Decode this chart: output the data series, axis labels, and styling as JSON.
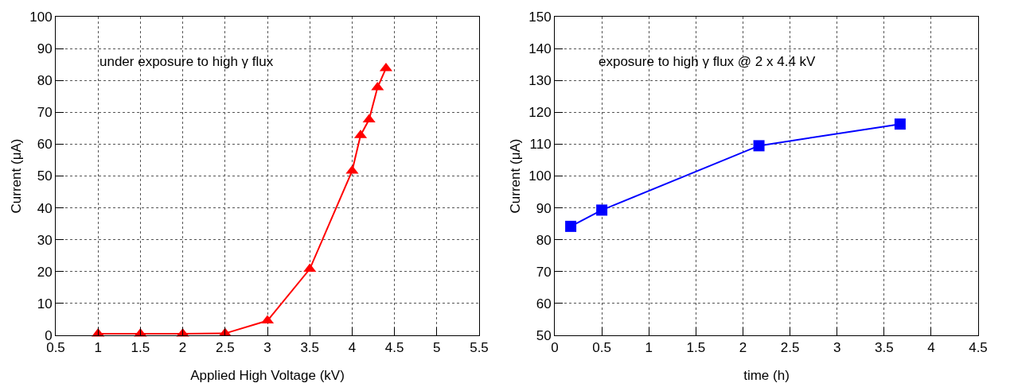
{
  "chart_data": [
    {
      "type": "line",
      "xlabel": "Applied High Voltage (kV)",
      "ylabel": "Current (μA)",
      "annotations": [
        "under exposure to high γ flux"
      ],
      "x": [
        1,
        1.5,
        2,
        2.5,
        3,
        3.5,
        4,
        4.1,
        4.2,
        4.3,
        4.4
      ],
      "series": [
        {
          "color": "#ff0000",
          "values": [
            0.5,
            0.5,
            0.5,
            0.6,
            4.6,
            20.8,
            51.6,
            62.8,
            67.7,
            77.8,
            83.8
          ]
        }
      ],
      "xlim": [
        0.5,
        5.5
      ],
      "xticks": [
        0.5,
        1,
        1.5,
        2,
        2.5,
        3,
        3.5,
        4,
        4.5,
        5,
        5.5
      ],
      "ylim": [
        0,
        100
      ],
      "yticks": [
        0,
        10,
        20,
        30,
        40,
        50,
        60,
        70,
        80,
        90,
        100
      ],
      "grid": true,
      "marker": "triangle",
      "line_style": "solid"
    },
    {
      "type": "line",
      "xlabel": "time (h)",
      "ylabel": "Current (μA)",
      "annotations": [
        "exposure to high γ flux @ 2 x 4.4 kV"
      ],
      "x": [
        0.17,
        0.5,
        2.17,
        3.67
      ],
      "series": [
        {
          "color": "#0000ff",
          "values": [
            84.2,
            89.3,
            109.5,
            116.3
          ]
        }
      ],
      "xlim": [
        0,
        4.5
      ],
      "xticks": [
        0,
        0.5,
        1,
        1.5,
        2,
        2.5,
        3,
        3.5,
        4,
        4.5
      ],
      "ylim": [
        50,
        150
      ],
      "yticks": [
        50,
        60,
        70,
        80,
        90,
        100,
        110,
        120,
        130,
        140,
        150
      ],
      "grid": true,
      "marker": "square",
      "line_style": "solid"
    }
  ]
}
